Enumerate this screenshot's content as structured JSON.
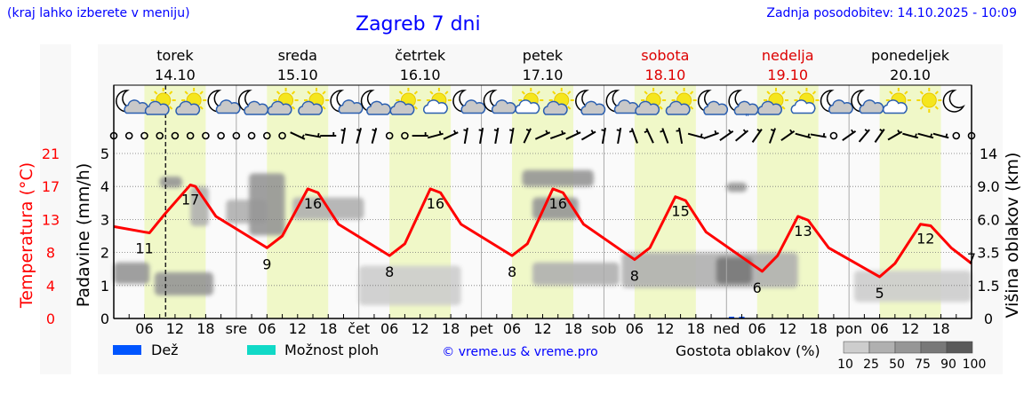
{
  "header": {
    "hint": "(kraj lahko izberete v meniju)",
    "title": "Zagreb 7 dni",
    "updated": "Zadnja posodobitev: 14.10.2025 - 10:09"
  },
  "days": [
    {
      "name": "torek",
      "date": "14.10",
      "weekend": false,
      "short": ""
    },
    {
      "name": "sreda",
      "date": "15.10",
      "weekend": false,
      "short": "sre"
    },
    {
      "name": "četrtek",
      "date": "16.10",
      "weekend": false,
      "short": "čet"
    },
    {
      "name": "petek",
      "date": "17.10",
      "weekend": false,
      "short": "pet"
    },
    {
      "name": "sobota",
      "date": "18.10",
      "weekend": true,
      "short": "sob"
    },
    {
      "name": "nedelja",
      "date": "19.10",
      "weekend": true,
      "short": "ned"
    },
    {
      "name": "ponedeljek",
      "date": "20.10",
      "weekend": false,
      "short": "pon"
    }
  ],
  "legend": {
    "rain": "Dež",
    "showers": "Možnost ploh",
    "credit": "© vreme.us & vreme.pro",
    "cloud_density_label": "Gostota oblakov (%)",
    "cloud_density_ticks": [
      "10",
      "25",
      "50",
      "75",
      "90",
      "100"
    ]
  },
  "colors": {
    "temperature": "#ff0000",
    "rain": "#0055ff",
    "showers": "#11d9c7",
    "daylight": "#f0f8c8",
    "weekend": "#dd0000",
    "link": "#0000ff",
    "cloud_density": [
      "#cdcdcd",
      "#b0b0b0",
      "#969696",
      "#787878",
      "#5a5a5a"
    ]
  },
  "chart_data": {
    "type": "line",
    "title": "Zagreb 7 dni",
    "x_unit": "hours from 14.10 00:00",
    "xlim": [
      0,
      168
    ],
    "x_tick_labels": [
      "06",
      "12",
      "18"
    ],
    "current_time_hour": 10.15,
    "daylight_hours": [
      6,
      18
    ],
    "left_axis_temperature": {
      "label": "Temperatura (°C)",
      "ticks": [
        "0",
        "4",
        "8",
        "13",
        "17",
        "21"
      ],
      "ylim": [
        0,
        21
      ]
    },
    "left_axis_precip": {
      "label": "Padavine (mm/h)",
      "ticks": [
        "0",
        "1",
        "2",
        "3",
        "4",
        "5"
      ],
      "ylim": [
        0,
        5
      ]
    },
    "right_axis_cloud": {
      "label": "Višina oblakov (km)",
      "ticks": [
        "0",
        "1.5",
        "3.5",
        "6.0",
        "9.0",
        "14"
      ],
      "values": [
        0,
        1.5,
        3.5,
        6,
        9,
        14
      ]
    },
    "grid": true,
    "temperature": [
      [
        0,
        11.7
      ],
      [
        6,
        11
      ],
      [
        7,
        10.9
      ],
      [
        10,
        13.3
      ],
      [
        15,
        17
      ],
      [
        16,
        16.8
      ],
      [
        20,
        13
      ],
      [
        30,
        9
      ],
      [
        33,
        10.5
      ],
      [
        38,
        16.5
      ],
      [
        40,
        16
      ],
      [
        44,
        12
      ],
      [
        54,
        8
      ],
      [
        57,
        9.5
      ],
      [
        62,
        16.5
      ],
      [
        64,
        16
      ],
      [
        68,
        12
      ],
      [
        78,
        8
      ],
      [
        81,
        9.5
      ],
      [
        86,
        16.5
      ],
      [
        88,
        16
      ],
      [
        92,
        12
      ],
      [
        102,
        7.5
      ],
      [
        105,
        9
      ],
      [
        110,
        15.5
      ],
      [
        112,
        15
      ],
      [
        116,
        11
      ],
      [
        127,
        6
      ],
      [
        130,
        8
      ],
      [
        134,
        13
      ],
      [
        136,
        12.5
      ],
      [
        140,
        9
      ],
      [
        150,
        5.3
      ],
      [
        153,
        7
      ],
      [
        158,
        12
      ],
      [
        160,
        11.8
      ],
      [
        164,
        9
      ],
      [
        168,
        7
      ]
    ],
    "temperature_labels": [
      {
        "hour": 6,
        "value": "11"
      },
      {
        "hour": 15,
        "value": "17"
      },
      {
        "hour": 30,
        "value": "9"
      },
      {
        "hour": 39,
        "value": "16"
      },
      {
        "hour": 54,
        "value": "8"
      },
      {
        "hour": 63,
        "value": "16"
      },
      {
        "hour": 78,
        "value": "8"
      },
      {
        "hour": 87,
        "value": "16"
      },
      {
        "hour": 102,
        "value": "8"
      },
      {
        "hour": 111,
        "value": "15"
      },
      {
        "hour": 126,
        "value": "6"
      },
      {
        "hour": 135,
        "value": "13"
      },
      {
        "hour": 150,
        "value": "5"
      },
      {
        "hour": 159,
        "value": "12"
      },
      {
        "hour": 168,
        "value": "7"
      }
    ],
    "rain": [
      {
        "hour": 121,
        "value": 0.05
      },
      {
        "hour": 123,
        "value": 0.05
      }
    ],
    "clouds": [
      {
        "h": [
          0,
          7
        ],
        "km": [
          1.6,
          2.9
        ],
        "density": 50
      },
      {
        "h": [
          8,
          19.5
        ],
        "km": [
          1.05,
          2.3
        ],
        "density": 50
      },
      {
        "h": [
          9,
          13.4
        ],
        "km": [
          8.9,
          10.5
        ],
        "density": 50
      },
      {
        "h": [
          15,
          18.6
        ],
        "km": [
          5.5,
          9
        ],
        "density": 25
      },
      {
        "h": [
          22,
          30
        ],
        "km": [
          5.7,
          7.8
        ],
        "density": 25
      },
      {
        "h": [
          26.5,
          33.5
        ],
        "km": [
          4.8,
          11
        ],
        "density": 50
      },
      {
        "h": [
          35,
          49
        ],
        "km": [
          6,
          8
        ],
        "density": 25
      },
      {
        "h": [
          48,
          68
        ],
        "km": [
          0.6,
          2.7
        ],
        "density": 10
      },
      {
        "h": [
          80,
          94
        ],
        "km": [
          9,
          11.5
        ],
        "density": 50
      },
      {
        "h": [
          82,
          91
        ],
        "km": [
          6,
          8
        ],
        "density": 50
      },
      {
        "h": [
          82,
          99
        ],
        "km": [
          1.5,
          2.9
        ],
        "density": 25
      },
      {
        "h": [
          99.5,
          134
        ],
        "km": [
          1.4,
          3.5
        ],
        "density": 25
      },
      {
        "h": [
          118,
          125
        ],
        "km": [
          1.6,
          3.2
        ],
        "density": 75
      },
      {
        "h": [
          120,
          124
        ],
        "km": [
          8.5,
          9.6
        ],
        "density": 50
      },
      {
        "h": [
          145,
          168
        ],
        "km": [
          0.75,
          2.4
        ],
        "density": 10
      }
    ],
    "weather_icons": [
      "moon-small-cloud",
      "sun-cloud",
      "sun-cloud",
      "moon-small-cloud",
      "moon-cloud",
      "sun-cloud",
      "sun-cloud",
      "moon-small-cloud",
      "moon-cloud",
      "sun-cloud",
      "sun-small-cloud",
      "moon-small-cloud",
      "moon-small-cloud",
      "sun-small-cloud",
      "sun-cloud",
      "moon-cloud",
      "moon-small-cloud",
      "sun-cloud",
      "sun-cloud",
      "moon-cloud",
      "moon-cloud-rain",
      "sun-cloud",
      "sun-small-cloud",
      "moon-small-cloud",
      "moon-small-cloud",
      "sun-small-cloud",
      "sun",
      "moon"
    ],
    "wind_angles": [
      null,
      null,
      null,
      null,
      null,
      null,
      null,
      null,
      null,
      null,
      null,
      null,
      25,
      10,
      0,
      -80,
      -75,
      -75,
      null,
      null,
      0,
      -15,
      -25,
      -80,
      -80,
      -80,
      -80,
      -65,
      -25,
      -20,
      -25,
      -30,
      -80,
      -80,
      -110,
      -115,
      -110,
      -100,
      15,
      -20,
      -35,
      -40,
      -55,
      -70,
      -35,
      15,
      10,
      null,
      -35,
      -50,
      -55,
      -30,
      15,
      15,
      15,
      null,
      null
    ]
  }
}
